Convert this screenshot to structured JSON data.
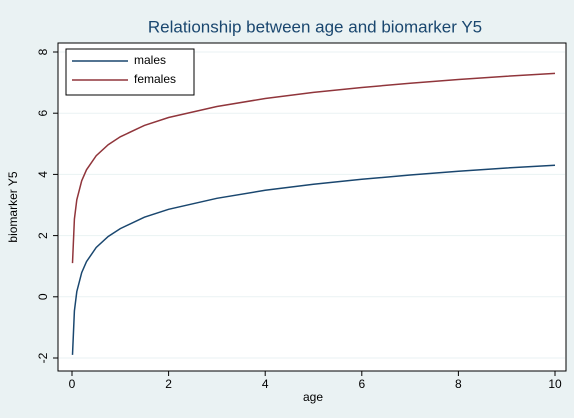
{
  "chart_data": {
    "type": "line",
    "title": "Relationship between age and biomarker Y5",
    "x_label": "age",
    "y_label": "biomarker Y5",
    "x": [
      0.01,
      0.05,
      0.1,
      0.2,
      0.3,
      0.5,
      0.75,
      1,
      1.5,
      2,
      3,
      4,
      5,
      6,
      7,
      8,
      9,
      10
    ],
    "series": [
      {
        "name": "males",
        "color": "#1a476f",
        "values": [
          -1.9,
          -0.46,
          0.17,
          0.79,
          1.15,
          1.61,
          1.97,
          2.23,
          2.6,
          2.86,
          3.22,
          3.48,
          3.68,
          3.84,
          3.98,
          4.1,
          4.21,
          4.3
        ]
      },
      {
        "name": "females",
        "color": "#90353b",
        "values": [
          1.1,
          2.54,
          3.17,
          3.79,
          4.15,
          4.61,
          4.97,
          5.23,
          5.6,
          5.86,
          6.22,
          6.48,
          6.68,
          6.84,
          6.98,
          7.1,
          7.21,
          7.3
        ]
      }
    ],
    "xlim": [
      0,
      10
    ],
    "xticks": [
      0,
      2,
      4,
      6,
      8,
      10
    ],
    "ylim": [
      -2,
      8
    ],
    "yticks": [
      -2,
      0,
      2,
      4,
      6,
      8
    ],
    "grid": true,
    "legend": "top-left"
  }
}
